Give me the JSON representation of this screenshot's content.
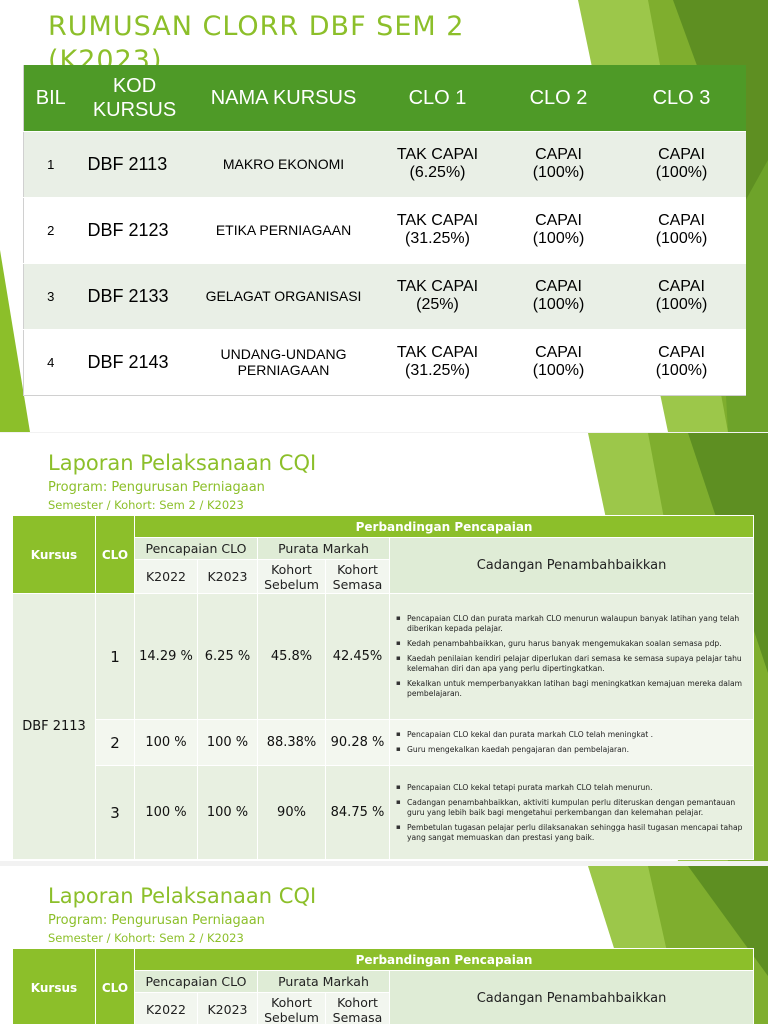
{
  "slide1": {
    "title_line1": "RUMUSAN CLORR DBF SEM 2",
    "title_line2": "(K2023)",
    "headers": {
      "bil": "BIL",
      "kod_1": "KOD",
      "kod_2": "KURSUS",
      "nama": "NAMA KURSUS",
      "clo1": "CLO 1",
      "clo2": "CLO 2",
      "clo3": "CLO 3"
    },
    "rows": [
      {
        "bil": "1",
        "kod": "DBF 2113",
        "nama_1": "MAKRO EKONOMI",
        "nama_2": "",
        "clo1_a": "TAK CAPAI",
        "clo1_b": "(6.25%)",
        "clo2_a": "CAPAI",
        "clo2_b": "(100%)",
        "clo3_a": "CAPAI",
        "clo3_b": "(100%)"
      },
      {
        "bil": "2",
        "kod": "DBF 2123",
        "nama_1": "ETIKA PERNIAGAAN",
        "nama_2": "",
        "clo1_a": "TAK CAPAI",
        "clo1_b": "(31.25%)",
        "clo2_a": "CAPAI",
        "clo2_b": "(100%)",
        "clo3_a": "CAPAI",
        "clo3_b": "(100%)"
      },
      {
        "bil": "3",
        "kod": "DBF 2133",
        "nama_1": "GELAGAT ORGANISASI",
        "nama_2": "",
        "clo1_a": "TAK CAPAI",
        "clo1_b": "(25%)",
        "clo2_a": "CAPAI",
        "clo2_b": "(100%)",
        "clo3_a": "CAPAI",
        "clo3_b": "(100%)"
      },
      {
        "bil": "4",
        "kod": "DBF 2143",
        "nama_1": "UNDANG-UNDANG",
        "nama_2": "PERNIAGAAN",
        "clo1_a": "TAK CAPAI",
        "clo1_b": "(31.25%)",
        "clo2_a": "CAPAI",
        "clo2_b": "(100%)",
        "clo3_a": "CAPAI",
        "clo3_b": "(100%)"
      }
    ]
  },
  "cqi": {
    "title": "Laporan Pelaksanaan CQI",
    "program": "Program: Pengurusan Perniagaan",
    "semester": "Semester / Kohort: Sem 2 / K2023",
    "headers": {
      "kursus": "Kursus",
      "clo": "CLO",
      "perbandingan": "Perbandingan Pencapaian",
      "pencapaian_clo": "Pencapaian CLO",
      "purata_markah": "Purata Markah",
      "cadangan": "Cadangan Penambahbaikkan",
      "k2022": "K2022",
      "k2023": "K2023",
      "kohort_sebelum_1": "Kohort",
      "kohort_sebelum_2": "Sebelum",
      "kohort_semasa_1": "Kohort",
      "kohort_semasa_2": "Semasa"
    },
    "course": "DBF 2113",
    "rows": [
      {
        "clo": "1",
        "k2022": "14.29 %",
        "k2023": "6.25 %",
        "sebelum": "45.8%",
        "semasa": "42.45%",
        "notes": [
          "Pencapaian CLO dan purata markah CLO  menurun walaupun banyak latihan yang telah diberikan kepada pelajar.",
          "Kedah penambahbaikkan, guru harus banyak mengemukakan soalan semasa pdp.",
          "Kaedah penilaian kendiri pelajar diperlukan dari semasa ke semasa supaya pelajar tahu kelemahan diri dan apa yang perlu dipertingkatkan.",
          "Kekalkan untuk memperbanyakkan latihan bagi meningkatkan kemajuan mereka dalam pembelajaran."
        ]
      },
      {
        "clo": "2",
        "k2022": "100 %",
        "k2023": "100 %",
        "sebelum": "88.38%",
        "semasa": "90.28 %",
        "notes": [
          "Pencapaian CLO kekal dan purata markah CLO telah meningkat .",
          "Guru mengekalkan kaedah pengajaran dan pembelajaran."
        ]
      },
      {
        "clo": "3",
        "k2022": "100 %",
        "k2023": "100 %",
        "sebelum": "90%",
        "semasa": "84.75 %",
        "notes": [
          "Pencapaian CLO kekal tetapi purata markah CLO telah menurun.",
          "Cadangan penambahbaikkan, aktiviti kumpulan perlu diteruskan dengan pemantauan guru yang lebih baik bagi mengetahui perkembangan dan kelemahan pelajar.",
          "Pembetulan tugasan pelajar perlu dilaksanakan sehingga hasil tugasan mencapai tahap yang sangat memuaskan dan prestasi yang baik."
        ]
      }
    ]
  },
  "colors": {
    "accent_green": "#8cbf2a",
    "header_green": "#4e9a27",
    "light_green": "#dfecd6"
  }
}
